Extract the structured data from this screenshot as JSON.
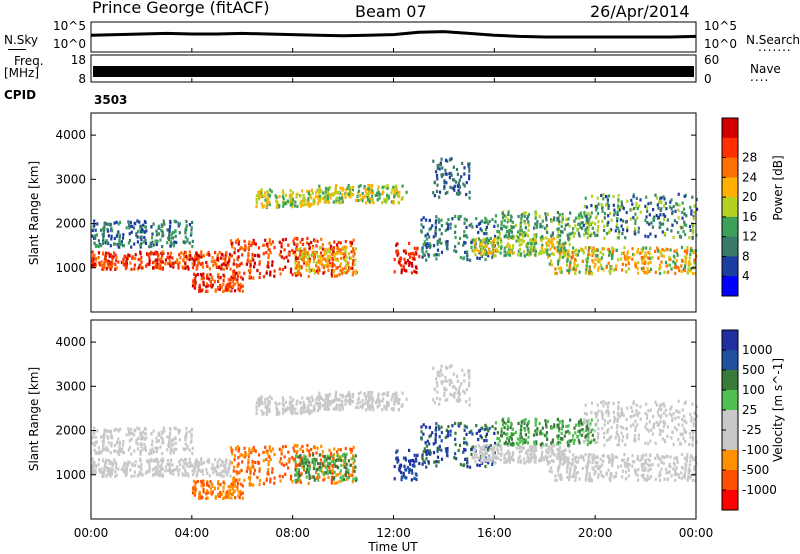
{
  "header": {
    "title": "Prince George (fitACF)",
    "beam": "Beam 07",
    "date": "26/Apr/2014"
  },
  "side_labels": {
    "nsky": "N.Sky",
    "freq": "Freq.",
    "freq_unit": "[MHz]",
    "cpid": "CPID",
    "nsearch": "N.Search",
    "nave": "Nave",
    "dots": "......."
  },
  "cpid_value": "3503",
  "colors": {
    "nsky_line": "#000000",
    "power": [
      "#0000ff",
      "#1a3fa0",
      "#3a7a6a",
      "#3aa05a",
      "#b5d020",
      "#ffb000",
      "#ff7000",
      "#ff3000",
      "#d00000"
    ],
    "velocity": [
      "#2030a0",
      "#2050a0",
      "#3a7a3a",
      "#50c050",
      "#c8c8c8",
      "#c8c8c8",
      "#ff9000",
      "#ff5000",
      "#ff0000"
    ]
  },
  "chart_data": [
    {
      "type": "line",
      "name": "noise-panel",
      "left_axis_label": "N.Sky",
      "right_axis_label": "N.Search",
      "left_ticks": [
        "10^5",
        "10^0"
      ],
      "right_ticks": [
        "10^5",
        "10^0"
      ],
      "x": [
        0,
        1,
        2,
        3,
        4,
        5,
        6,
        7,
        8,
        9,
        10,
        11,
        12,
        13,
        14,
        15,
        16,
        17,
        18,
        19,
        20,
        21,
        22,
        23,
        24
      ],
      "values": [
        2.8,
        2.9,
        3.0,
        3.1,
        3.0,
        3.0,
        3.1,
        3.0,
        2.9,
        2.8,
        2.7,
        2.8,
        2.9,
        3.3,
        3.4,
        3.1,
        2.8,
        2.6,
        2.5,
        2.5,
        2.5,
        2.5,
        2.5,
        2.5,
        2.6
      ]
    },
    {
      "type": "bar",
      "name": "frequency-panel",
      "left_axis_label": "Freq. [MHz]",
      "right_axis_label": "Nave",
      "left_ticks": [
        18,
        8
      ],
      "right_ticks": [
        60,
        0
      ],
      "cpid": "3503"
    },
    {
      "type": "heatmap",
      "name": "power",
      "ylabel": "Slant Range [km]",
      "yticks": [
        1000,
        2000,
        3000,
        4000
      ],
      "ylim": [
        0,
        4500
      ],
      "colorbar_label": "Power [dB]",
      "colorbar_ticks": [
        4,
        8,
        12,
        16,
        20,
        24,
        28
      ]
    },
    {
      "type": "heatmap",
      "name": "velocity",
      "ylabel": "Slant Range [km]",
      "yticks": [
        1000,
        2000,
        3000,
        4000
      ],
      "ylim": [
        0,
        4500
      ],
      "colorbar_label": "Velocity [m s^-1]",
      "colorbar_ticks": [
        "1000",
        "500",
        "100",
        "25",
        "-25",
        "-100",
        "-500",
        "-1000"
      ]
    }
  ],
  "x_axis": {
    "ticks": [
      "00:00",
      "04:00",
      "08:00",
      "12:00",
      "16:00",
      "20:00",
      "00:00"
    ],
    "label": "Time UT"
  }
}
